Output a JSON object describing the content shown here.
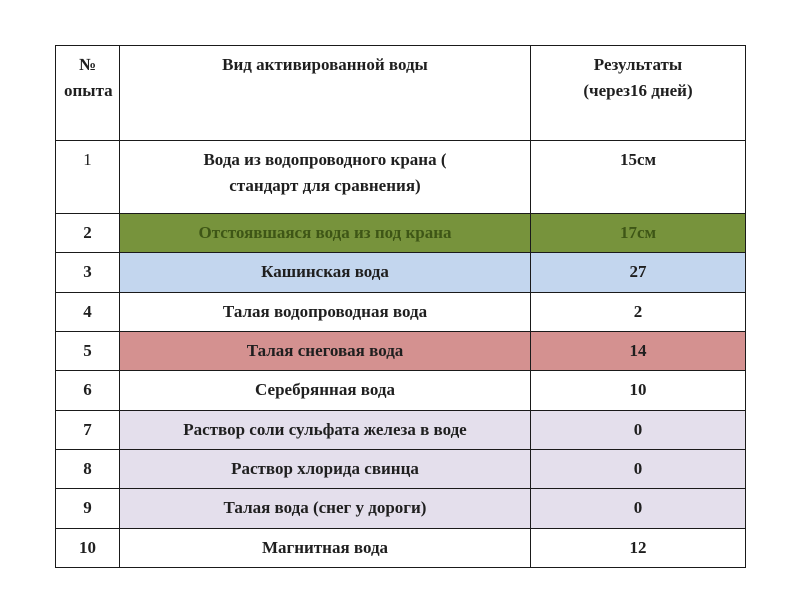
{
  "colors": {
    "green": "#77933C",
    "green_text": "#3E5616",
    "blue": "#C3D6EE",
    "pink": "#D49190",
    "lavender": "#E4DFEC",
    "border": "#1a1a1a"
  },
  "table": {
    "headers": {
      "num": "№\nопыта",
      "type": "Вид  активированной воды",
      "result": "Результаты\n(через16 дней)"
    },
    "rows": [
      {
        "num": "1",
        "type": "Вода из водопроводного крана (\nстандарт для сравнения)",
        "result": "15см",
        "color": "white",
        "size": "tall"
      },
      {
        "num": "2",
        "type": "Отстоявшаяся вода из под крана",
        "result": "17см",
        "color": "green",
        "size": "norm"
      },
      {
        "num": "3",
        "type": "Кашинская вода",
        "result": "27",
        "color": "blue",
        "size": "norm"
      },
      {
        "num": "4",
        "type": "Талая водопроводная вода",
        "result": "2",
        "color": "white",
        "size": "norm"
      },
      {
        "num": "5",
        "type": "Талая снеговая вода",
        "result": "14",
        "color": "pink",
        "size": "norm"
      },
      {
        "num": "6",
        "type": "Серебрянная вода",
        "result": "10",
        "color": "white",
        "size": "norm"
      },
      {
        "num": "7",
        "type": "Раствор соли сульфата железа в воде",
        "result": "0",
        "color": "lavender",
        "size": "norm"
      },
      {
        "num": "8",
        "type": "Раствор хлорида свинца",
        "result": "0",
        "color": "lavender",
        "size": "norm"
      },
      {
        "num": "9",
        "type": "Талая вода (снег у дороги)",
        "result": "0",
        "color": "lavender",
        "size": "norm"
      },
      {
        "num": "10",
        "type": "Магнитная вода",
        "result": "12",
        "color": "white",
        "size": "norm"
      }
    ]
  }
}
